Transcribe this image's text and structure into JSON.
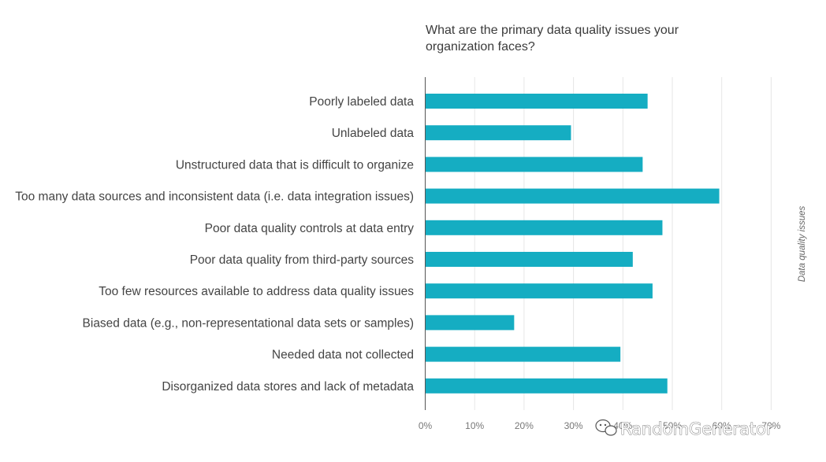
{
  "chart_data": {
    "type": "bar",
    "orientation": "horizontal",
    "title": "What are the primary data quality issues your organization faces?",
    "side_label": "Data quality issues",
    "categories": [
      "Poorly labeled data",
      "Unlabeled data",
      "Unstructured data that is difficult to organize",
      "Too many data sources and inconsistent data (i.e. data integration issues)",
      "Poor data quality controls at data entry",
      "Poor data quality from third-party sources",
      "Too few resources available to address data quality issues",
      "Biased data (e.g., non-representational data sets or samples)",
      "Needed data not collected",
      "Disorganized data stores and lack of metadata"
    ],
    "values": [
      45,
      29.5,
      44,
      59.5,
      48,
      42,
      46,
      18,
      39.5,
      49
    ],
    "xlim": [
      0,
      70
    ],
    "xticks": [
      "0%",
      "10%",
      "20%",
      "30%",
      "40%",
      "50%",
      "60%",
      "70%"
    ],
    "grid": true,
    "bar_color": "#15adc2"
  },
  "watermark": "RandomGenerator"
}
